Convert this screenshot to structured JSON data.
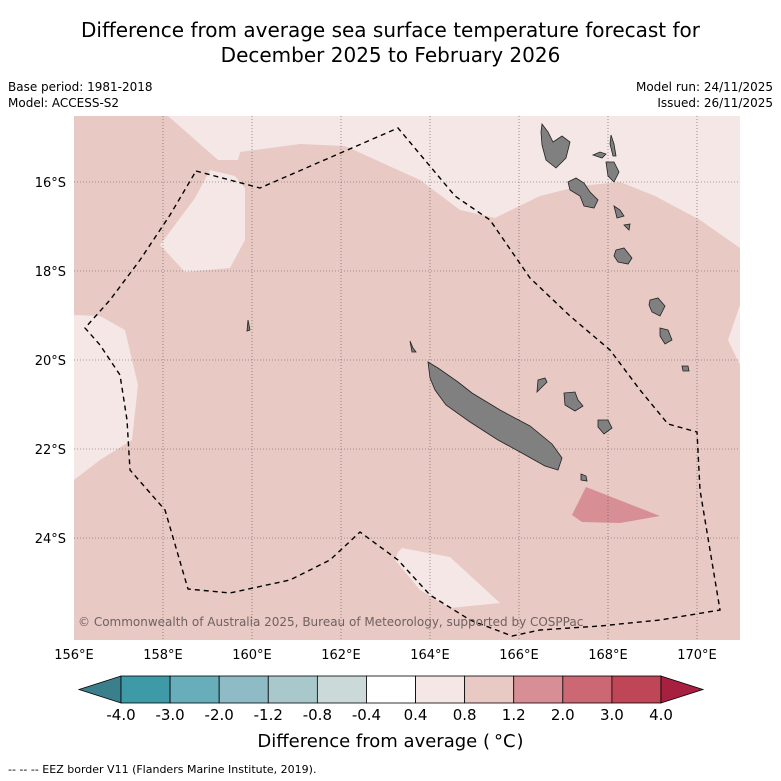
{
  "header": {
    "title_line1": "Difference from average sea surface temperature forecast for",
    "title_line2": "December 2025 to February 2026",
    "base_period": "Base period: 1981-2018",
    "model": "Model: ACCESS-S2",
    "model_run": "Model run: 24/11/2025",
    "issued": "Issued: 26/11/2025"
  },
  "map": {
    "copyright": "© Commonwealth of Australia 2025, Bureau of Meteorology, supported by COSPPac",
    "lat_labels": [
      "16°S",
      "18°S",
      "20°S",
      "22°S",
      "24°S"
    ],
    "lon_labels": [
      "156°E",
      "158°E",
      "160°E",
      "162°E",
      "164°E",
      "166°E",
      "168°E",
      "170°E"
    ],
    "lon_range": [
      156,
      171
    ],
    "lat_range": [
      -14.5,
      -26.3
    ]
  },
  "legend": {
    "ticks": [
      "-4.0",
      "-3.0",
      "-2.0",
      "-1.2",
      "-0.8",
      "-0.4",
      "0.4",
      "0.8",
      "1.2",
      "2.0",
      "3.0",
      "4.0"
    ],
    "colors": [
      "#3f9aa8",
      "#68adba",
      "#8ebbc5",
      "#a9c8cc",
      "#cbdad9",
      "#ffffff",
      "#f4e7e5",
      "#e8c9c4",
      "#d78e95",
      "#cc6873",
      "#bf4657"
    ],
    "under_color": "#3a7f8c",
    "over_color": "#a8203f",
    "title": "Difference from average (°C)",
    "title_prefix": "Difference from average (",
    "title_unit": "°C",
    "title_suffix": ")"
  },
  "footnote": "--  --  -- EEZ border V11 (Flanders Marine Institute, 2019).",
  "colors": {
    "land": "#808080",
    "anomaly_0_4_to_0_8": "#f4e7e5",
    "anomaly_0_8_to_1_2": "#e8c9c4",
    "anomaly_1_2_to_2_0": "#d78e95"
  }
}
